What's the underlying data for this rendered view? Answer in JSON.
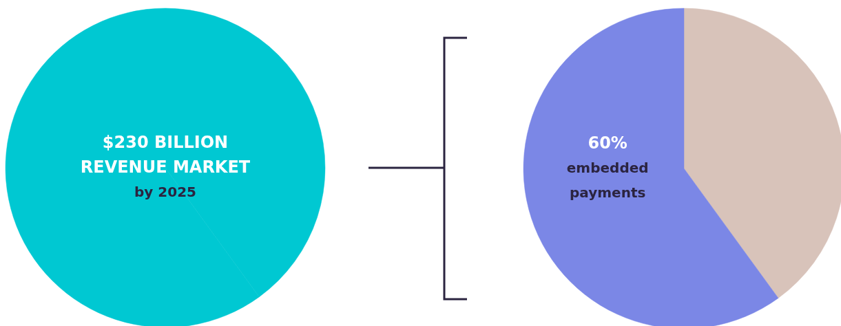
{
  "chart_data": [
    {
      "type": "pie",
      "title": "$230 BILLION REVENUE MARKET",
      "subtitle": "by 2025",
      "categories": [
        null,
        null
      ],
      "values": [
        40,
        60
      ],
      "colors": [
        "#00c8d2",
        "#00c8d2"
      ]
    },
    {
      "type": "pie",
      "categories": [
        null,
        "embedded payments"
      ],
      "values": [
        40,
        60
      ],
      "colors": [
        "#d8c3ba",
        "#7b87e6"
      ],
      "value_labels": [
        null,
        "60%"
      ]
    }
  ]
}
